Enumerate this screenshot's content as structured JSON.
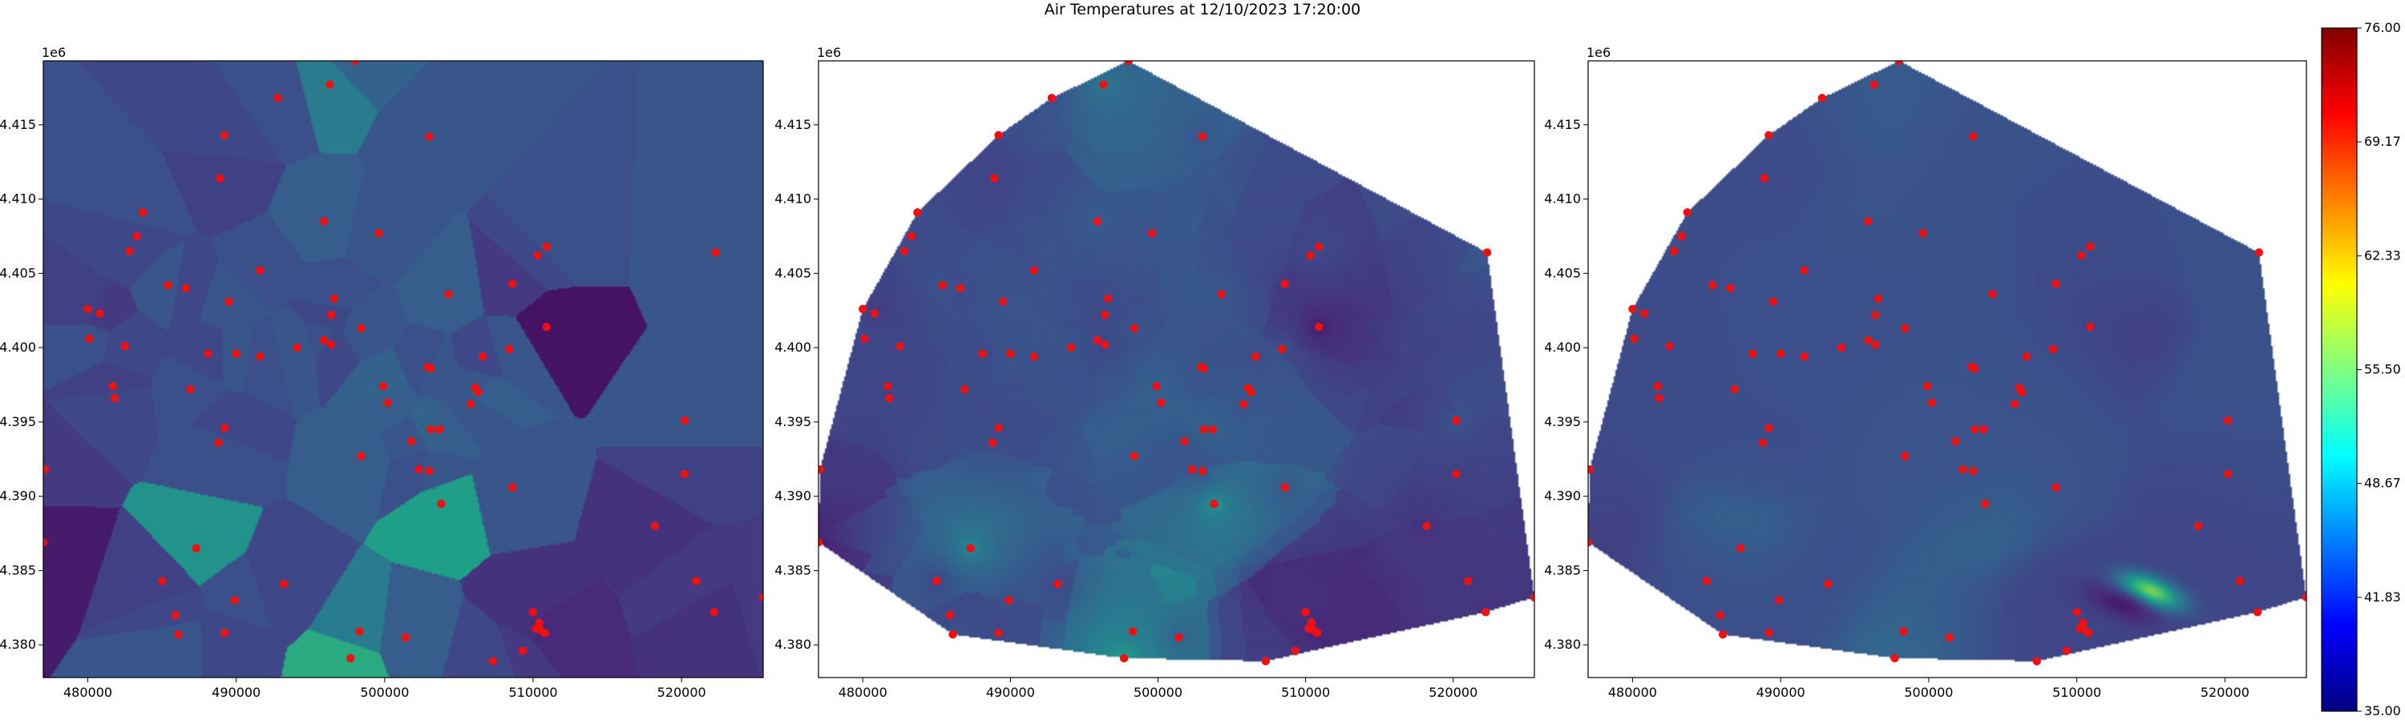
{
  "chart_data": {
    "type": "heatmap",
    "title": "Air Temperatures at 12/10/2023 17:20:00",
    "x_range": [
      477000,
      525500
    ],
    "y_range": [
      4377800,
      4419300
    ],
    "x_ticks": [
      480000,
      490000,
      500000,
      510000,
      520000
    ],
    "x_tick_labels": [
      "480000",
      "490000",
      "500000",
      "510000",
      "520000"
    ],
    "y_ticks": [
      4380000,
      4385000,
      4390000,
      4395000,
      4400000,
      4405000,
      4410000,
      4415000
    ],
    "y_tick_labels": [
      "4.380",
      "4.385",
      "4.390",
      "4.395",
      "4.400",
      "4.405",
      "4.410",
      "4.415"
    ],
    "y_offset_label": "1e6",
    "grid": false,
    "legend": "none",
    "panels": [
      {
        "method": "nearest-neighbor (voronoi)",
        "cmap": "viridis",
        "vmin": 35,
        "vmax": 76
      },
      {
        "method": "linear (triangulation)",
        "cmap": "viridis",
        "vmin": 35,
        "vmax": 76
      },
      {
        "method": "smooth (triangulation)",
        "cmap": "viridis",
        "vmin": 35,
        "vmax": 76
      }
    ],
    "colorbar": {
      "cmap": "jet",
      "vmin": 35.0,
      "vmax": 76.0,
      "ticks": [
        35.0,
        41.83,
        48.67,
        55.5,
        62.33,
        69.17,
        76.0
      ],
      "tick_labels": [
        "35.00",
        "41.83",
        "48.67",
        "55.50",
        "62.33",
        "69.17",
        "76.00"
      ]
    },
    "station_color": "#ee1111",
    "stations": [
      {
        "x": 498000,
        "y": 4419300,
        "t": 48
      },
      {
        "x": 492800,
        "y": 4416800,
        "t": 45
      },
      {
        "x": 496300,
        "y": 4417700,
        "t": 52
      },
      {
        "x": 489200,
        "y": 4414300,
        "t": 44
      },
      {
        "x": 503000,
        "y": 4414200,
        "t": 46
      },
      {
        "x": 488900,
        "y": 4411400,
        "t": 43
      },
      {
        "x": 483700,
        "y": 4409100,
        "t": 45
      },
      {
        "x": 483300,
        "y": 4407500,
        "t": 44
      },
      {
        "x": 482800,
        "y": 4406500,
        "t": 44
      },
      {
        "x": 485400,
        "y": 4404200,
        "t": 46
      },
      {
        "x": 491600,
        "y": 4405200,
        "t": 45
      },
      {
        "x": 495900,
        "y": 4408500,
        "t": 47
      },
      {
        "x": 499600,
        "y": 4407700,
        "t": 46
      },
      {
        "x": 510300,
        "y": 4406200,
        "t": 44
      },
      {
        "x": 510900,
        "y": 4406800,
        "t": 45
      },
      {
        "x": 522300,
        "y": 4406400,
        "t": 46
      },
      {
        "x": 480000,
        "y": 4402600,
        "t": 43
      },
      {
        "x": 480800,
        "y": 4402300,
        "t": 42
      },
      {
        "x": 480100,
        "y": 4400600,
        "t": 45
      },
      {
        "x": 482500,
        "y": 4400100,
        "t": 44
      },
      {
        "x": 486600,
        "y": 4404000,
        "t": 44
      },
      {
        "x": 489500,
        "y": 4403100,
        "t": 46
      },
      {
        "x": 496600,
        "y": 4403300,
        "t": 45
      },
      {
        "x": 496400,
        "y": 4402200,
        "t": 44
      },
      {
        "x": 504300,
        "y": 4403600,
        "t": 47
      },
      {
        "x": 508600,
        "y": 4404300,
        "t": 42
      },
      {
        "x": 510900,
        "y": 4401400,
        "t": 37
      },
      {
        "x": 488100,
        "y": 4399600,
        "t": 44
      },
      {
        "x": 490000,
        "y": 4399600,
        "t": 46
      },
      {
        "x": 491600,
        "y": 4399400,
        "t": 45
      },
      {
        "x": 494100,
        "y": 4400000,
        "t": 46
      },
      {
        "x": 495900,
        "y": 4400500,
        "t": 45
      },
      {
        "x": 496400,
        "y": 4400200,
        "t": 44
      },
      {
        "x": 498400,
        "y": 4401300,
        "t": 46
      },
      {
        "x": 506600,
        "y": 4399400,
        "t": 44
      },
      {
        "x": 508400,
        "y": 4399900,
        "t": 46
      },
      {
        "x": 481700,
        "y": 4397400,
        "t": 43
      },
      {
        "x": 481800,
        "y": 4396600,
        "t": 44
      },
      {
        "x": 486900,
        "y": 4397200,
        "t": 45
      },
      {
        "x": 499900,
        "y": 4397400,
        "t": 48
      },
      {
        "x": 500200,
        "y": 4396300,
        "t": 47
      },
      {
        "x": 502900,
        "y": 4398700,
        "t": 45
      },
      {
        "x": 503100,
        "y": 4398600,
        "t": 46
      },
      {
        "x": 506100,
        "y": 4397300,
        "t": 46
      },
      {
        "x": 506300,
        "y": 4397000,
        "t": 47
      },
      {
        "x": 505800,
        "y": 4396200,
        "t": 46
      },
      {
        "x": 489200,
        "y": 4394600,
        "t": 44
      },
      {
        "x": 488800,
        "y": 4393600,
        "t": 45
      },
      {
        "x": 498400,
        "y": 4392700,
        "t": 47
      },
      {
        "x": 501800,
        "y": 4393700,
        "t": 46
      },
      {
        "x": 503100,
        "y": 4394500,
        "t": 48
      },
      {
        "x": 503700,
        "y": 4394500,
        "t": 47
      },
      {
        "x": 520200,
        "y": 4395100,
        "t": 46
      },
      {
        "x": 477100,
        "y": 4391800,
        "t": 42
      },
      {
        "x": 502300,
        "y": 4391800,
        "t": 45
      },
      {
        "x": 503000,
        "y": 4391700,
        "t": 46
      },
      {
        "x": 503800,
        "y": 4389500,
        "t": 58
      },
      {
        "x": 508600,
        "y": 4390600,
        "t": 46
      },
      {
        "x": 520200,
        "y": 4391500,
        "t": 43
      },
      {
        "x": 487300,
        "y": 4386500,
        "t": 56
      },
      {
        "x": 518200,
        "y": 4388000,
        "t": 41
      },
      {
        "x": 477000,
        "y": 4386900,
        "t": 38
      },
      {
        "x": 485000,
        "y": 4384300,
        "t": 43
      },
      {
        "x": 493200,
        "y": 4384100,
        "t": 44
      },
      {
        "x": 489900,
        "y": 4383000,
        "t": 45
      },
      {
        "x": 485900,
        "y": 4382000,
        "t": 44
      },
      {
        "x": 486100,
        "y": 4380700,
        "t": 46
      },
      {
        "x": 489200,
        "y": 4380800,
        "t": 44
      },
      {
        "x": 498300,
        "y": 4380900,
        "t": 52
      },
      {
        "x": 497700,
        "y": 4379100,
        "t": 60
      },
      {
        "x": 501400,
        "y": 4380500,
        "t": 47
      },
      {
        "x": 507300,
        "y": 4378900,
        "t": 44
      },
      {
        "x": 510000,
        "y": 4382200,
        "t": 41
      },
      {
        "x": 510400,
        "y": 4381500,
        "t": 40
      },
      {
        "x": 510200,
        "y": 4381100,
        "t": 41
      },
      {
        "x": 510500,
        "y": 4381000,
        "t": 39
      },
      {
        "x": 510800,
        "y": 4380800,
        "t": 40
      },
      {
        "x": 509300,
        "y": 4379600,
        "t": 42
      },
      {
        "x": 521000,
        "y": 4384300,
        "t": 42
      },
      {
        "x": 522200,
        "y": 4382200,
        "t": 41
      },
      {
        "x": 525500,
        "y": 4383200,
        "t": 42
      }
    ],
    "smooth_features": [
      {
        "x": 515000,
        "y": 4383600,
        "t": 68,
        "rx": 2100,
        "ry": 900,
        "rot": -22
      },
      {
        "x": 513000,
        "y": 4382700,
        "t": 38,
        "rx": 2400,
        "ry": 900,
        "rot": -22
      }
    ]
  }
}
